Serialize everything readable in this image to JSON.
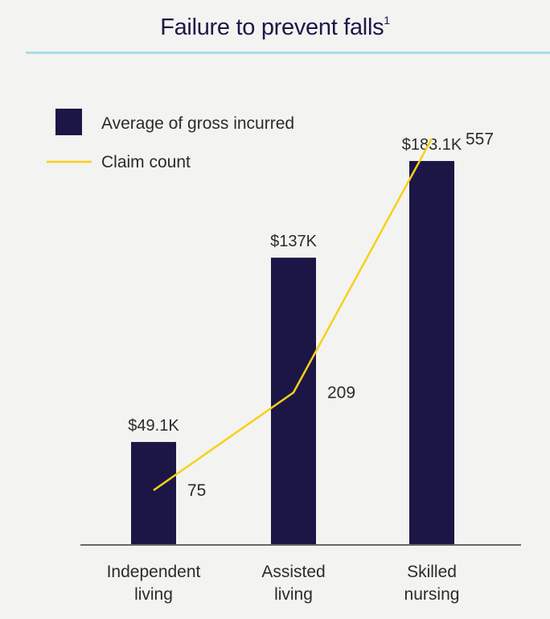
{
  "chart_data": {
    "type": "bar",
    "title": "Failure to prevent falls",
    "title_superscript": "1",
    "categories": [
      [
        "Independent",
        "living"
      ],
      [
        "Assisted",
        "living"
      ],
      [
        "Skilled",
        "nursing"
      ]
    ],
    "series": [
      {
        "name": "Average of gross incurred",
        "kind": "bar",
        "axis": "left",
        "values": [
          49.1,
          137,
          183.1
        ],
        "labels": [
          "$49.1K",
          "$137K",
          "$183.1K"
        ],
        "color": "#1c1646"
      },
      {
        "name": "Claim count",
        "kind": "line",
        "axis": "right",
        "values": [
          75,
          209,
          557
        ],
        "labels": [
          "75",
          "209",
          "557"
        ],
        "color": "#f7d117"
      }
    ],
    "ylim": [
      0,
      200
    ],
    "y2lim": [
      0,
      575
    ],
    "legend_position": "top-left",
    "grid": false
  }
}
